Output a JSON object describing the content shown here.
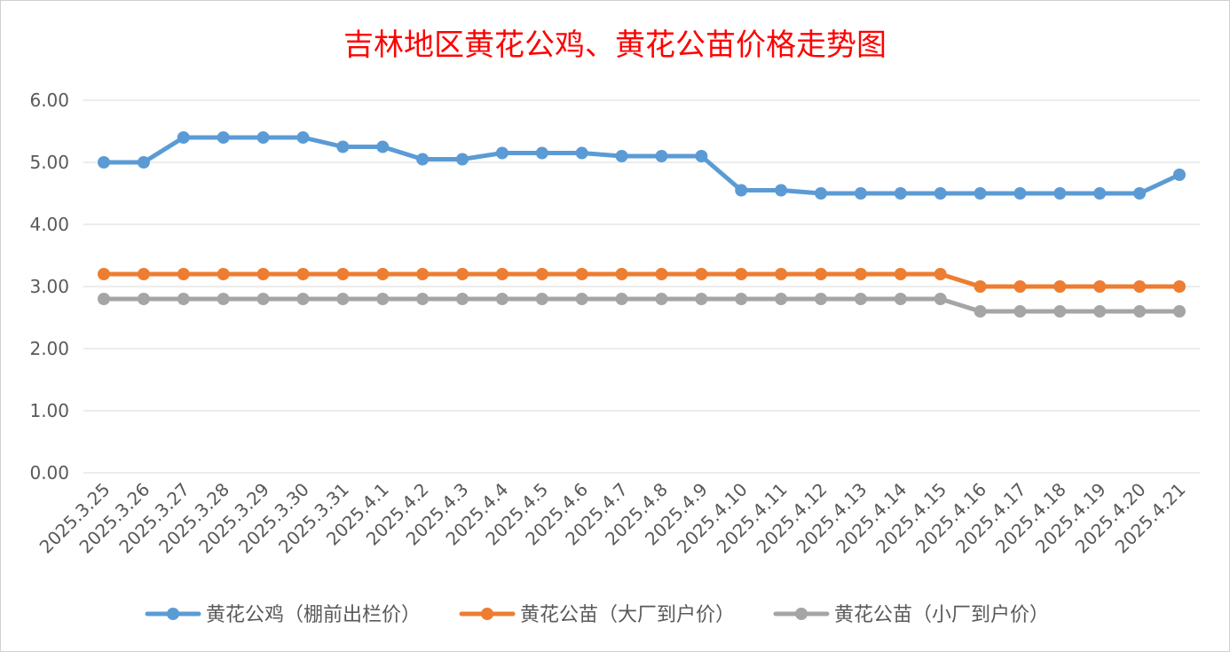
{
  "chart_data": {
    "type": "line",
    "title": "吉林地区黄花公鸡、黄花公苗价格走势图",
    "xlabel": "",
    "ylabel": "",
    "ylim": [
      0,
      6
    ],
    "yticks": [
      "0.00",
      "1.00",
      "2.00",
      "3.00",
      "4.00",
      "5.00",
      "6.00"
    ],
    "grid": true,
    "legend_position": "bottom",
    "categories": [
      "2025.3.25",
      "2025.3.26",
      "2025.3.27",
      "2025.3.28",
      "2025.3.29",
      "2025.3.30",
      "2025.3.31",
      "2025.4.1",
      "2025.4.2",
      "2025.4.3",
      "2025.4.4",
      "2025.4.5",
      "2025.4.6",
      "2025.4.7",
      "2025.4.8",
      "2025.4.9",
      "2025.4.10",
      "2025.4.11",
      "2025.4.12",
      "2025.4.13",
      "2025.4.14",
      "2025.4.15",
      "2025.4.16",
      "2025.4.17",
      "2025.4.18",
      "2025.4.19",
      "2025.4.20",
      "2025.4.21"
    ],
    "series": [
      {
        "name": "黄花公鸡（棚前出栏价）",
        "color": "#5b9bd5",
        "values": [
          5.0,
          5.0,
          5.4,
          5.4,
          5.4,
          5.4,
          5.25,
          5.25,
          5.05,
          5.05,
          5.15,
          5.15,
          5.15,
          5.1,
          5.1,
          5.1,
          4.55,
          4.55,
          4.5,
          4.5,
          4.5,
          4.5,
          4.5,
          4.5,
          4.5,
          4.5,
          4.5,
          4.8
        ]
      },
      {
        "name": "黄花公苗（大厂到户价）",
        "color": "#ed7d31",
        "values": [
          3.2,
          3.2,
          3.2,
          3.2,
          3.2,
          3.2,
          3.2,
          3.2,
          3.2,
          3.2,
          3.2,
          3.2,
          3.2,
          3.2,
          3.2,
          3.2,
          3.2,
          3.2,
          3.2,
          3.2,
          3.2,
          3.2,
          3.0,
          3.0,
          3.0,
          3.0,
          3.0,
          3.0
        ]
      },
      {
        "name": "黄花公苗（小厂到户价）",
        "color": "#a5a5a5",
        "values": [
          2.8,
          2.8,
          2.8,
          2.8,
          2.8,
          2.8,
          2.8,
          2.8,
          2.8,
          2.8,
          2.8,
          2.8,
          2.8,
          2.8,
          2.8,
          2.8,
          2.8,
          2.8,
          2.8,
          2.8,
          2.8,
          2.8,
          2.6,
          2.6,
          2.6,
          2.6,
          2.6,
          2.6
        ]
      }
    ]
  }
}
